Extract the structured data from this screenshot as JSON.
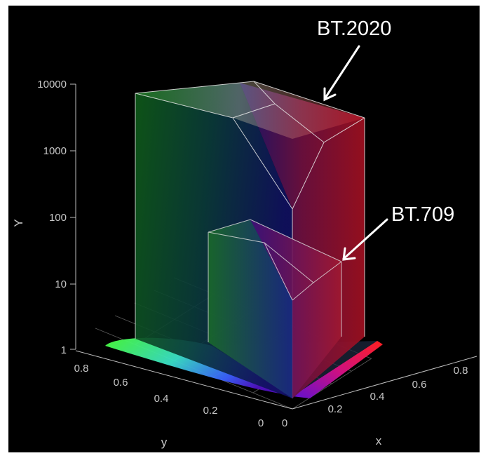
{
  "chart_data": {
    "type": "3d-gamut-volume",
    "axes": {
      "x": {
        "label": "x",
        "ticks": [
          "0",
          "0.2",
          "0.4",
          "0.6",
          "0.8"
        ]
      },
      "y": {
        "label": "y",
        "ticks": [
          "0",
          "0.2",
          "0.4",
          "0.6",
          "0.8"
        ]
      },
      "z": {
        "label": "Y",
        "scale": "log",
        "ticks": [
          "1",
          "10",
          "100",
          "1000",
          "10000"
        ],
        "range": [
          1,
          10000
        ]
      }
    },
    "series": [
      {
        "name": "BT.2020",
        "primaries": {
          "red": [
            0.708,
            0.292
          ],
          "green": [
            0.17,
            0.797
          ],
          "blue": [
            0.131,
            0.046
          ]
        },
        "peak_luminance": 10000
      },
      {
        "name": "BT.709",
        "primaries": {
          "red": [
            0.64,
            0.33
          ],
          "green": [
            0.3,
            0.6
          ],
          "blue": [
            0.15,
            0.06
          ]
        },
        "peak_luminance": 100
      }
    ],
    "annotations": [
      {
        "text": "BT.2020",
        "target_series": "BT.2020"
      },
      {
        "text": "BT.709",
        "target_series": "BT.709"
      }
    ],
    "grid": true,
    "background": "#000000",
    "colors": {
      "red": "#ff1a1a",
      "green": "#1ecf3a",
      "blue": "#1a2cff",
      "cyan": "#22d8e8",
      "magenta": "#c21ee0",
      "yellow": "#e8d020"
    }
  }
}
